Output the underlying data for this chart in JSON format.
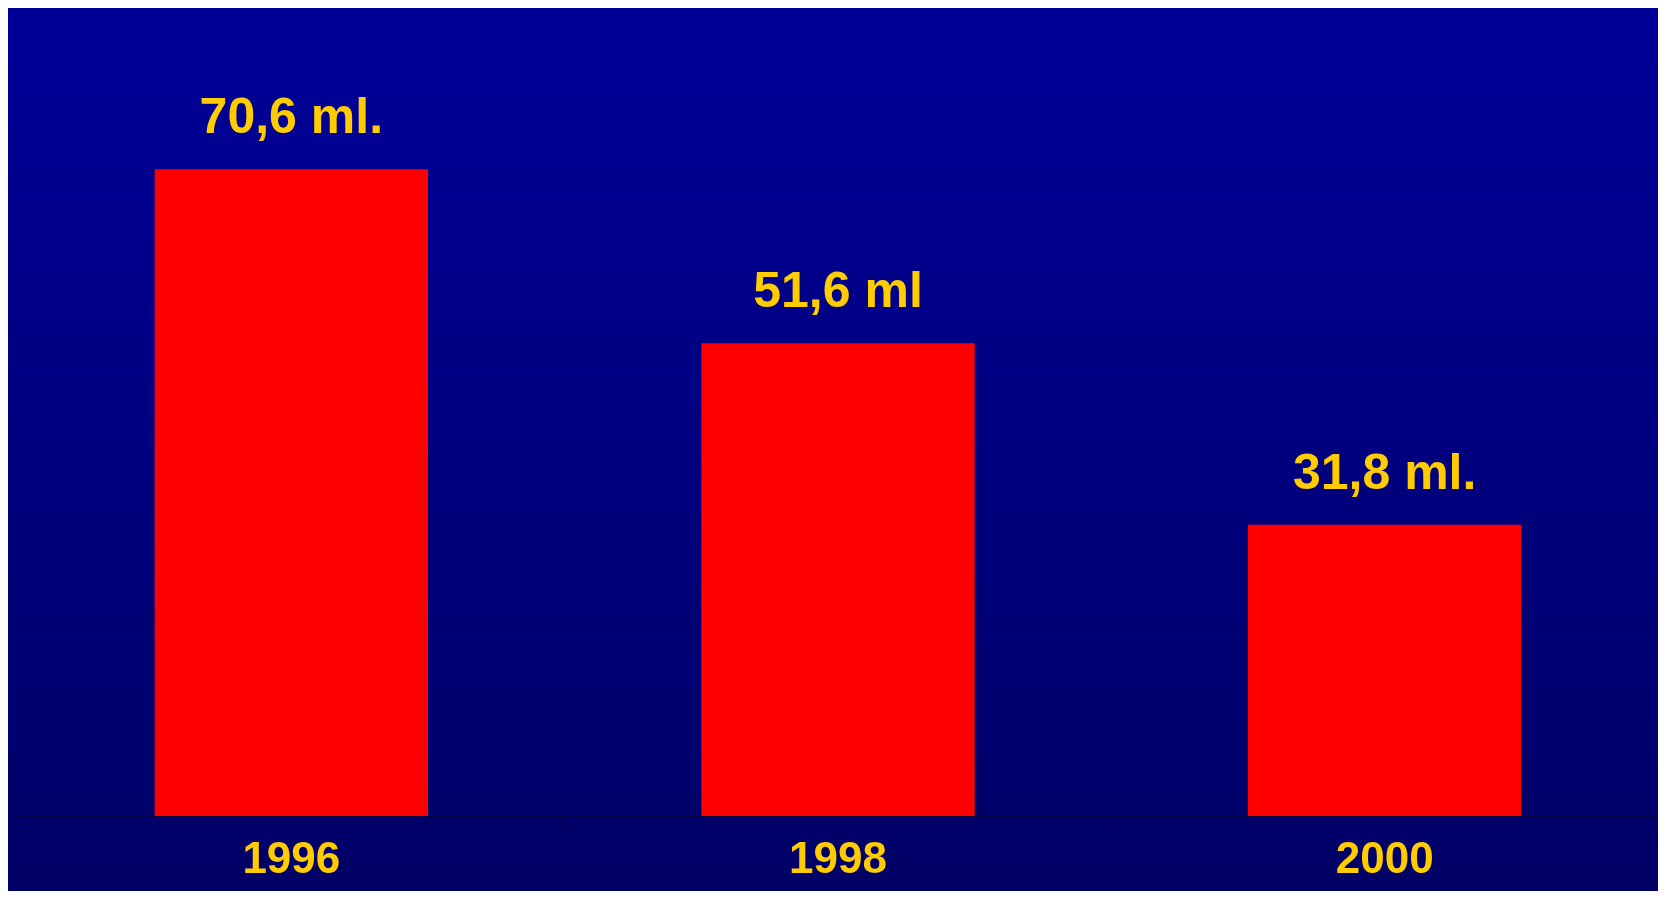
{
  "chart_data": {
    "type": "bar",
    "categories": [
      "1996",
      "1998",
      "2000"
    ],
    "values": [
      70.6,
      51.6,
      31.8
    ],
    "value_labels": [
      "70,6 ml.",
      "51,6 ml",
      "31,8 ml."
    ],
    "color": "#ff0000",
    "legend": false
  }
}
